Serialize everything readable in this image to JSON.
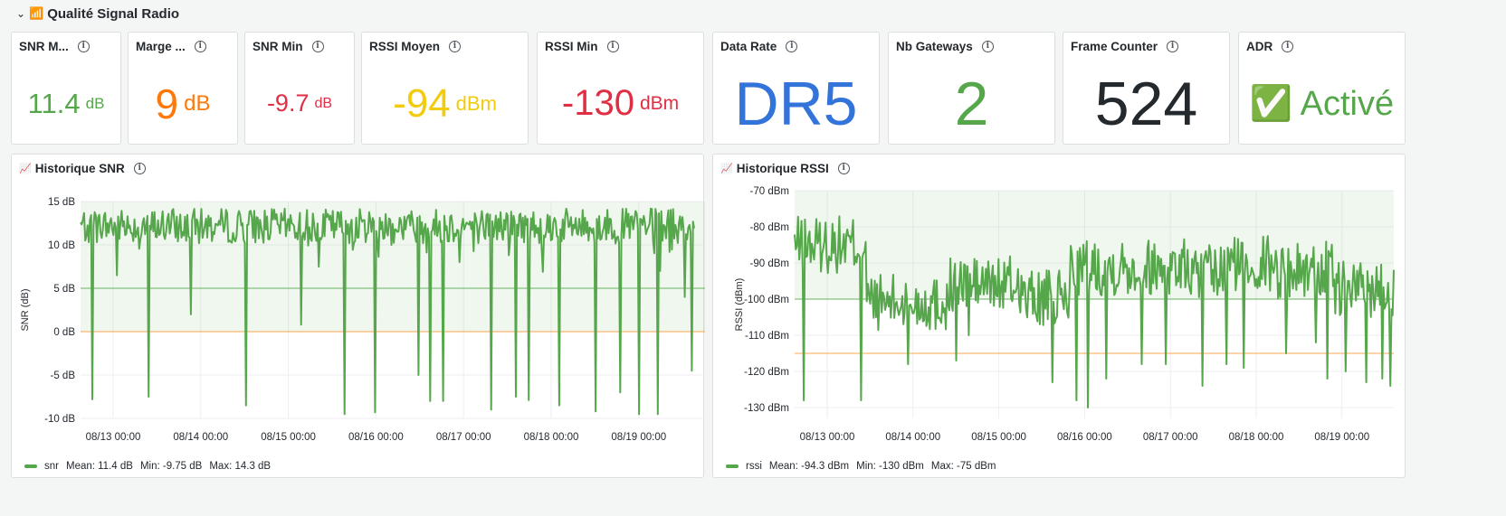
{
  "row": {
    "title": "Qualité Signal Radio",
    "emoji": "📶",
    "chevron": "⌄"
  },
  "stats": [
    {
      "title": "SNR M...",
      "value": "11.4",
      "unit": "dB",
      "color": "#56a64b",
      "valueSize": 31,
      "unitSize": 17
    },
    {
      "title": "Marge ...",
      "value": "9",
      "unit": "dB",
      "color": "#ff780a",
      "valueSize": 46,
      "unitSize": 24
    },
    {
      "title": "SNR Min",
      "value": "-9.7",
      "unit": "dB",
      "color": "#e02f44",
      "valueSize": 27,
      "unitSize": 16
    },
    {
      "title": "RSSI Moyen",
      "value": "-94",
      "unit": "dBm",
      "color": "#f2cc0c",
      "valueSize": 44,
      "unitSize": 22
    },
    {
      "title": "RSSI Min",
      "value": "-130",
      "unit": "dBm",
      "color": "#e02f44",
      "valueSize": 40,
      "unitSize": 21
    },
    {
      "title": "Data Rate",
      "value": "DR5",
      "unit": "",
      "color": "#3274d9",
      "valueSize": 68,
      "unitSize": 20
    },
    {
      "title": "Nb Gateways",
      "value": "2",
      "unit": "",
      "color": "#56a64b",
      "valueSize": 68,
      "unitSize": 20
    },
    {
      "title": "Frame Counter",
      "value": "524",
      "unit": "",
      "color": "#24292e",
      "valueSize": 68,
      "unitSize": 20
    },
    {
      "title": "ADR",
      "value": "✅ Activé",
      "unit": "",
      "color": "#56a64b",
      "valueSize": 38,
      "unitSize": 20
    }
  ],
  "charts": {
    "snr": {
      "title": "Historique SNR",
      "emoji": "📈",
      "legend": {
        "name": "snr",
        "mean": "Mean: 11.4 dB",
        "min": "Min: -9.75 dB",
        "max": "Max: 14.3 dB"
      }
    },
    "rssi": {
      "title": "Historique RSSI",
      "emoji": "📈",
      "legend": {
        "name": "rssi",
        "mean": "Mean: -94.3 dBm",
        "min": "Min: -130 dBm",
        "max": "Max: -75 dBm"
      }
    }
  },
  "chart_data": [
    {
      "type": "line",
      "title": "Historique SNR",
      "ylabel": "SNR (dB)",
      "ylim": [
        -10,
        15
      ],
      "yticks": [
        "15 dB",
        "10 dB",
        "5 dB",
        "0 dB",
        "-5 dB",
        "-10 dB"
      ],
      "ytick_values": [
        15,
        10,
        5,
        0,
        -5,
        -10
      ],
      "xticks": [
        "08/13 00:00",
        "08/14 00:00",
        "08/15 00:00",
        "08/16 00:00",
        "08/17 00:00",
        "08/18 00:00",
        "08/19 00:00"
      ],
      "thresholds": [
        {
          "value": 5,
          "color": "#56a64b"
        },
        {
          "value": 0,
          "color": "#ff9830"
        }
      ],
      "fill_above": 0,
      "series": [
        {
          "name": "snr",
          "color": "#56a64b",
          "mean": 11.4,
          "min": -9.75,
          "max": 14.3,
          "points": 524,
          "seed": 7,
          "dips": [
            [
              0.02,
              -7.8
            ],
            [
              0.06,
              6.5
            ],
            [
              0.11,
              -7.5
            ],
            [
              0.18,
              2.0
            ],
            [
              0.27,
              -8.5
            ],
            [
              0.36,
              0.8
            ],
            [
              0.43,
              -9.5
            ],
            [
              0.48,
              -9.3
            ],
            [
              0.55,
              -5.0
            ],
            [
              0.57,
              -8.0
            ],
            [
              0.59,
              -8.0
            ],
            [
              0.67,
              -9.0
            ],
            [
              0.71,
              -7.5
            ],
            [
              0.73,
              -7.9
            ],
            [
              0.78,
              -8.5
            ],
            [
              0.84,
              -9.2
            ],
            [
              0.88,
              -7.0
            ],
            [
              0.91,
              -9.5
            ],
            [
              0.94,
              -9.5
            ],
            [
              0.985,
              4.0
            ],
            [
              0.997,
              -4.5
            ]
          ]
        }
      ]
    },
    {
      "type": "line",
      "title": "Historique RSSI",
      "ylabel": "RSSI (dBm)",
      "ylim": [
        -133,
        -70
      ],
      "yticks": [
        "-70 dBm",
        "-80 dBm",
        "-90 dBm",
        "-100 dBm",
        "-110 dBm",
        "-120 dBm",
        "-130 dBm"
      ],
      "ytick_values": [
        -70,
        -80,
        -90,
        -100,
        -110,
        -120,
        -130
      ],
      "xticks": [
        "08/13 00:00",
        "08/14 00:00",
        "08/15 00:00",
        "08/16 00:00",
        "08/17 00:00",
        "08/18 00:00",
        "08/19 00:00"
      ],
      "thresholds": [
        {
          "value": -100,
          "color": "#56a64b"
        },
        {
          "value": -115,
          "color": "#ff9830"
        }
      ],
      "fill_above": -100,
      "series": [
        {
          "name": "rssi",
          "color": "#56a64b",
          "mean": -94.3,
          "min": -130,
          "max": -75,
          "points": 524,
          "seed": 13,
          "dips": [
            [
              0.015,
              -128
            ],
            [
              0.11,
              -128
            ],
            [
              0.19,
              -118
            ],
            [
              0.27,
              -117
            ],
            [
              0.29,
              -110
            ],
            [
              0.43,
              -123
            ],
            [
              0.47,
              -128
            ],
            [
              0.49,
              -130
            ],
            [
              0.52,
              -122
            ],
            [
              0.58,
              -118
            ],
            [
              0.62,
              -118
            ],
            [
              0.68,
              -124
            ],
            [
              0.72,
              -118
            ],
            [
              0.75,
              -119
            ],
            [
              0.82,
              -115
            ],
            [
              0.87,
              -112
            ],
            [
              0.89,
              -122
            ],
            [
              0.92,
              -120
            ],
            [
              0.955,
              -123
            ],
            [
              0.98,
              -122
            ],
            [
              0.995,
              -124
            ]
          ]
        }
      ]
    }
  ]
}
